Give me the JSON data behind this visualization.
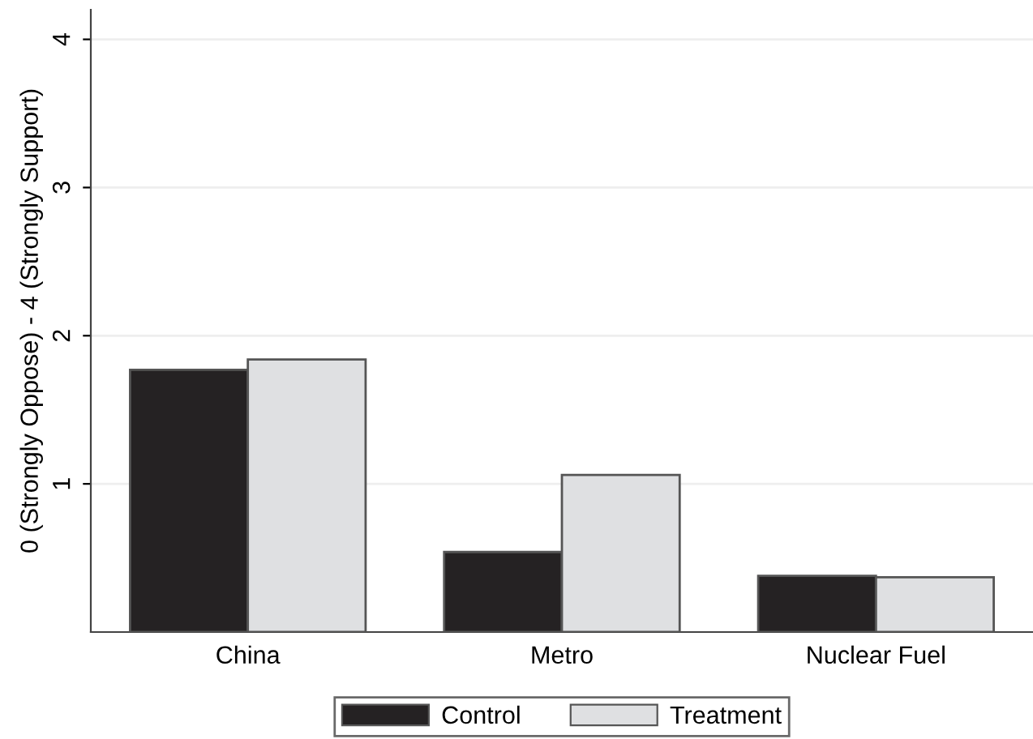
{
  "chart_data": {
    "type": "bar",
    "ylabel": "0 (Strongly Oppose) - 4 (Strongly Support)",
    "categories": [
      "China",
      "Metro",
      "Nuclear Fuel"
    ],
    "series": [
      {
        "name": "Control",
        "color": "#252223",
        "values": [
          1.77,
          0.54,
          0.38
        ]
      },
      {
        "name": "Treatment",
        "color": "#dfe0e2",
        "values": [
          1.84,
          1.06,
          0.37
        ]
      }
    ],
    "ylim": [
      0,
      4.2
    ],
    "yticks": [
      1,
      2,
      3,
      4
    ],
    "grid": "y",
    "legend": "bottom"
  }
}
